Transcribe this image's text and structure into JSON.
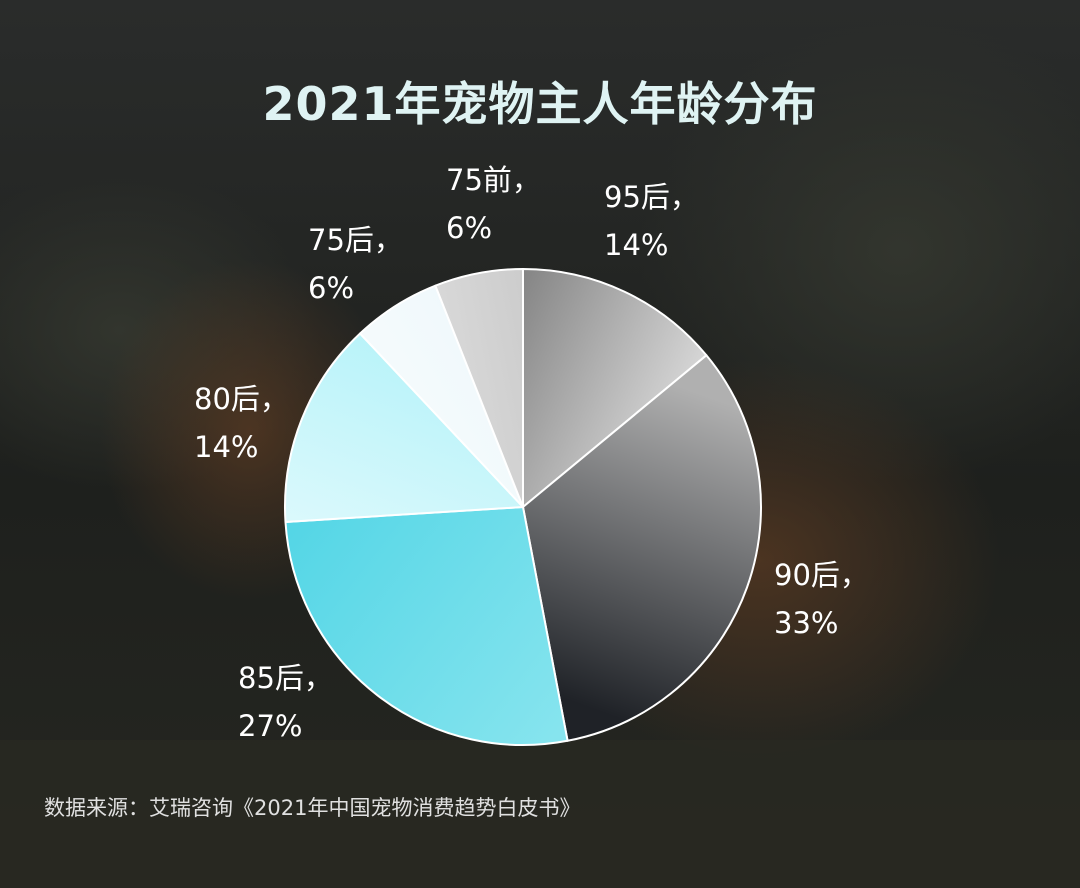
{
  "title": "2021年宠物主人年龄分布",
  "source": "数据来源：艾瑞咨询《2021年中国宠物消费趋势白皮书》",
  "chart_data": {
    "type": "pie",
    "title": "2021年宠物主人年龄分布",
    "start_angle_deg": 0,
    "direction": "clockwise",
    "slices": [
      {
        "name": "95后",
        "value": 14,
        "percent_label": "14%",
        "separator": "，",
        "gradient": [
          "#f0f0f0",
          "#6a6a6a"
        ]
      },
      {
        "name": "90后",
        "value": 33,
        "percent_label": "33%",
        "separator": "，",
        "gradient": [
          "#1f2227",
          "#b0b0b0"
        ]
      },
      {
        "name": "85后",
        "value": 27,
        "percent_label": "27%",
        "separator": "，",
        "gradient": [
          "#55d6e6",
          "#86e4ee"
        ]
      },
      {
        "name": "80后",
        "value": 14,
        "percent_label": "14%",
        "separator": "，",
        "gradient": [
          "#aef1f8",
          "#e6fbfd"
        ]
      },
      {
        "name": "75后",
        "value": 6,
        "percent_label": "6%",
        "separator": "，",
        "gradient": [
          "#eaf6fa",
          "#fbfdfe"
        ]
      },
      {
        "name": "75前",
        "value": 6,
        "percent_label": "6%",
        "separator": "，",
        "gradient": [
          "#bcbcbc",
          "#e8e8e8"
        ]
      }
    ]
  },
  "colors": {
    "title": "#dff3f3",
    "label": "#ffffff",
    "slice_border": "#ffffff"
  }
}
